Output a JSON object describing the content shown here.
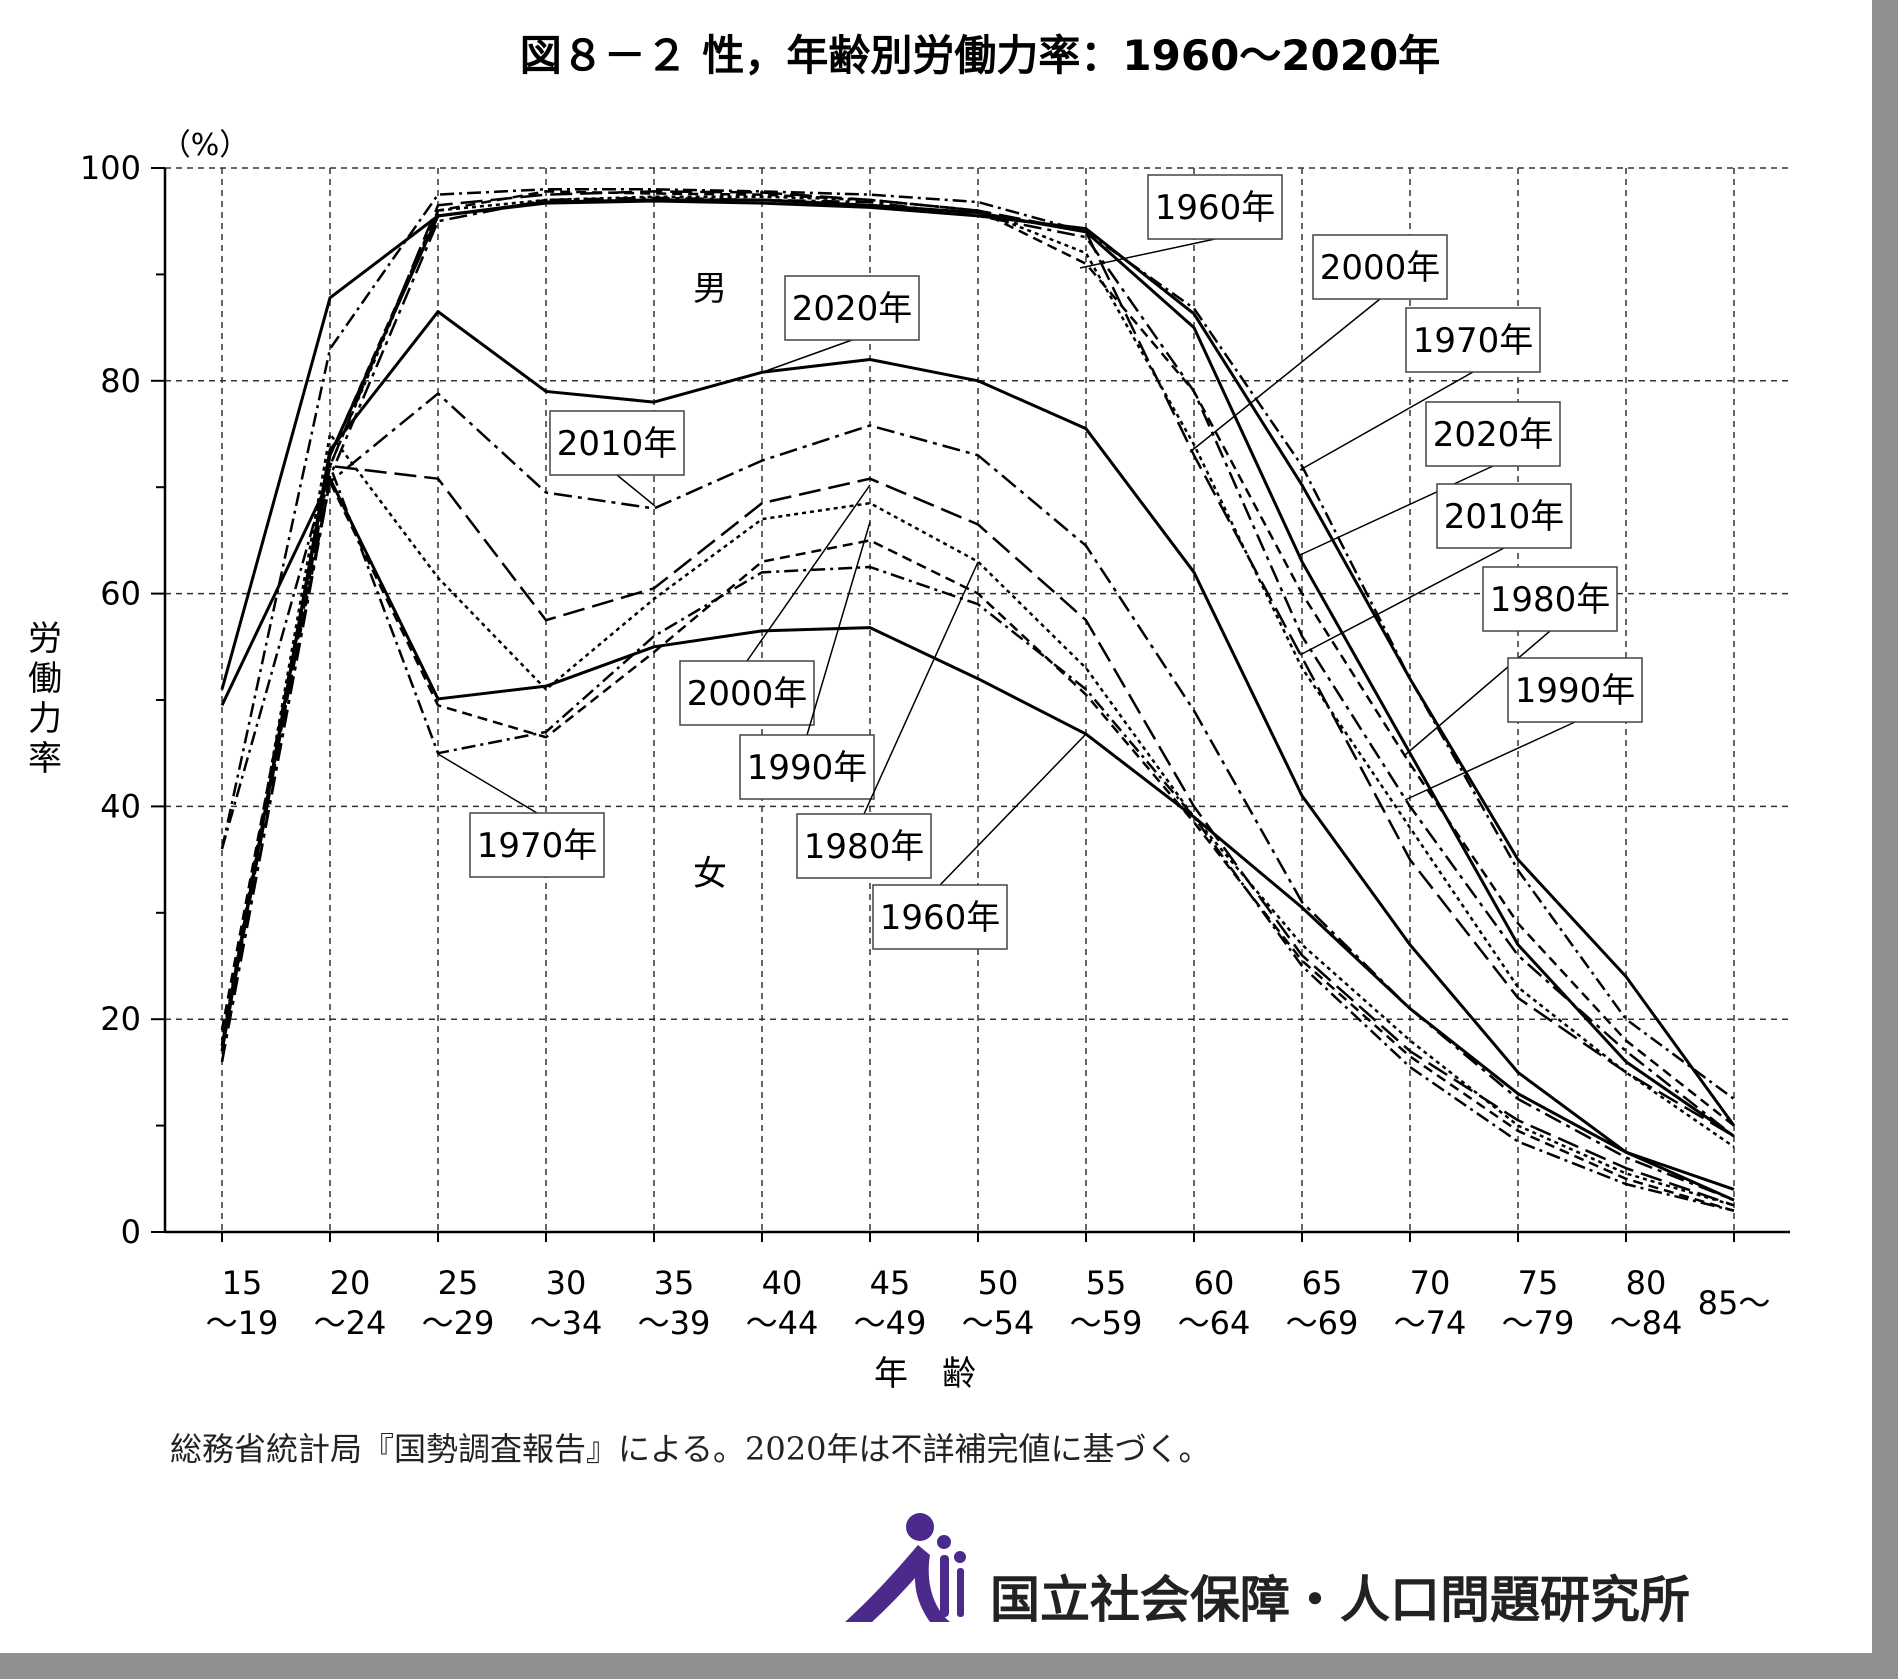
{
  "chart_data": {
    "type": "line",
    "title": "図８－２ 性，年齢別労働力率：1960～2020年",
    "unit_label": "（%）",
    "ylabel": "労働力率",
    "xlabel": "年　齢",
    "ylim": [
      0,
      100
    ],
    "yticks": [
      0,
      20,
      40,
      60,
      80,
      100
    ],
    "grid": true,
    "categories": [
      {
        "top": "15",
        "bottom": "～19"
      },
      {
        "top": "20",
        "bottom": "～24"
      },
      {
        "top": "25",
        "bottom": "～29"
      },
      {
        "top": "30",
        "bottom": "～34"
      },
      {
        "top": "35",
        "bottom": "～39"
      },
      {
        "top": "40",
        "bottom": "～44"
      },
      {
        "top": "45",
        "bottom": "～49"
      },
      {
        "top": "50",
        "bottom": "～54"
      },
      {
        "top": "55",
        "bottom": "～59"
      },
      {
        "top": "60",
        "bottom": "～64"
      },
      {
        "top": "65",
        "bottom": "～69"
      },
      {
        "top": "70",
        "bottom": "～74"
      },
      {
        "top": "75",
        "bottom": "～79"
      },
      {
        "top": "80",
        "bottom": "～84"
      },
      {
        "top": "85～",
        "bottom": ""
      }
    ],
    "group_labels": {
      "male": "男",
      "female": "女"
    },
    "series": [
      {
        "name": "1960年",
        "group": "male",
        "values": [
          51.0,
          87.8,
          95.5,
          96.7,
          96.9,
          96.7,
          96.3,
          95.5,
          94.3,
          86.3,
          70.2,
          52.0,
          35.0,
          24.0,
          10.0
        ],
        "style": "solid",
        "width": 3
      },
      {
        "name": "1970年",
        "group": "male",
        "values": [
          36.0,
          83.0,
          97.5,
          98.0,
          98.0,
          97.8,
          97.5,
          96.8,
          94.0,
          86.8,
          72.0,
          52.0,
          34.0,
          20.0,
          12.5
        ],
        "style": "dashdot",
        "width": 2.5
      },
      {
        "name": "1980年",
        "group": "male",
        "values": [
          19.0,
          73.0,
          96.0,
          97.8,
          97.6,
          97.5,
          97.0,
          96.0,
          91.0,
          79.0,
          60.0,
          44.0,
          29.0,
          18.0,
          10.0
        ],
        "style": "dashed",
        "width": 2.5
      },
      {
        "name": "1990年",
        "group": "male",
        "values": [
          18.0,
          72.0,
          96.0,
          97.0,
          97.3,
          97.3,
          97.0,
          96.0,
          92.0,
          74.0,
          53.0,
          38.0,
          23.0,
          15.0,
          8.0
        ],
        "style": "dotted",
        "width": 2.5
      },
      {
        "name": "2000年",
        "group": "male",
        "values": [
          17.0,
          72.0,
          96.5,
          97.5,
          97.8,
          97.7,
          97.0,
          96.0,
          94.0,
          73.0,
          54.0,
          35.0,
          22.0,
          15.0,
          9.0
        ],
        "style": "longdash",
        "width": 2.5
      },
      {
        "name": "2010年",
        "group": "male",
        "values": [
          16.0,
          71.0,
          95.0,
          97.0,
          97.2,
          97.0,
          96.8,
          95.5,
          93.5,
          79.0,
          56.0,
          40.0,
          26.0,
          17.0,
          9.0
        ],
        "style": "dashdot2",
        "width": 2.5
      },
      {
        "name": "2020年",
        "group": "male",
        "values": [
          17.5,
          73.0,
          95.5,
          96.8,
          97.0,
          97.0,
          96.5,
          95.8,
          94.0,
          85.0,
          63.0,
          45.0,
          27.0,
          16.0,
          9.0
        ],
        "style": "solid",
        "width": 3
      },
      {
        "name": "1960年",
        "group": "female",
        "values": [
          49.5,
          70.8,
          50.1,
          51.3,
          55.0,
          56.5,
          56.8,
          52.0,
          46.8,
          39.0,
          30.5,
          21.0,
          13.0,
          7.5,
          4.0
        ],
        "style": "solid",
        "width": 3
      },
      {
        "name": "1970年",
        "group": "female",
        "values": [
          36.0,
          72.0,
          45.0,
          47.0,
          56.0,
          62.0,
          62.5,
          59.0,
          51.0,
          39.0,
          25.0,
          15.5,
          8.5,
          4.5,
          2.0
        ],
        "style": "dashdot",
        "width": 2.5
      },
      {
        "name": "1980年",
        "group": "female",
        "values": [
          19.0,
          70.5,
          49.5,
          46.5,
          54.5,
          63.0,
          65.0,
          60.0,
          50.5,
          38.5,
          25.5,
          16.5,
          9.5,
          5.0,
          2.0
        ],
        "style": "dashed",
        "width": 2.5
      },
      {
        "name": "1990年",
        "group": "female",
        "values": [
          17.5,
          75.0,
          61.5,
          51.0,
          59.5,
          67.0,
          68.5,
          63.0,
          53.0,
          39.0,
          27.0,
          18.0,
          10.0,
          5.5,
          2.5
        ],
        "style": "dotted",
        "width": 2.5
      },
      {
        "name": "2000年",
        "group": "female",
        "values": [
          17.0,
          72.0,
          70.8,
          57.5,
          60.5,
          68.5,
          70.8,
          66.5,
          57.5,
          40.0,
          26.0,
          17.0,
          10.5,
          6.0,
          2.5
        ],
        "style": "longdash",
        "width": 2.5
      },
      {
        "name": "2010年",
        "group": "female",
        "values": [
          16.0,
          70.5,
          78.8,
          69.5,
          68.0,
          72.5,
          75.8,
          73.0,
          64.5,
          49.0,
          31.0,
          21.0,
          12.5,
          7.0,
          3.0
        ],
        "style": "dashdot2",
        "width": 2.5
      },
      {
        "name": "2020年",
        "group": "female",
        "values": [
          17.0,
          73.5,
          86.5,
          79.0,
          78.0,
          80.8,
          82.0,
          80.0,
          75.5,
          62.0,
          41.0,
          27.0,
          15.0,
          7.5,
          3.0
        ],
        "style": "solid",
        "width": 3
      }
    ],
    "annotations": [
      {
        "text": "1960年",
        "group": "male"
      },
      {
        "text": "2000年",
        "group": "male"
      },
      {
        "text": "1970年",
        "group": "male"
      },
      {
        "text": "2020年",
        "group": "male"
      },
      {
        "text": "2010年",
        "group": "male"
      },
      {
        "text": "1980年",
        "group": "male"
      },
      {
        "text": "1990年",
        "group": "male"
      },
      {
        "text": "2020年",
        "group": "female"
      },
      {
        "text": "2010年",
        "group": "female"
      },
      {
        "text": "2000年",
        "group": "female"
      },
      {
        "text": "1990年",
        "group": "female"
      },
      {
        "text": "1980年",
        "group": "female"
      },
      {
        "text": "1960年",
        "group": "female"
      },
      {
        "text": "1970年",
        "group": "female"
      }
    ]
  },
  "footnote": "総務省統計局『国勢調査報告』による。2020年は不詳補完値に基づく。",
  "organization": "国立社会保障・人口問題研究所",
  "colors": {
    "line": "#000000",
    "grid": "#333333",
    "logo": "#4b2a8c",
    "frame": "#8f8f8f"
  }
}
